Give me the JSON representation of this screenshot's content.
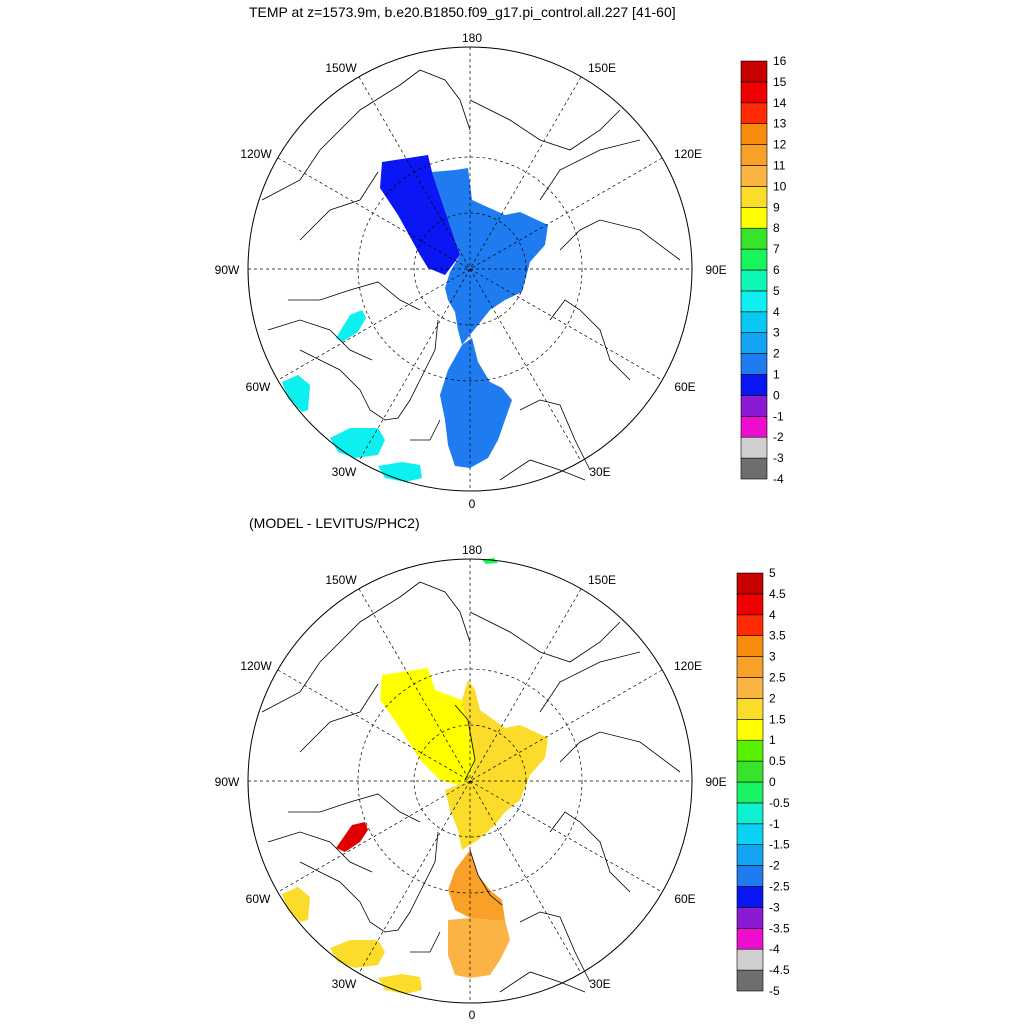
{
  "panel_top": {
    "title": "TEMP at z=1573.9m, b.e20.B1850.f09_g17.pi_control.all.227 [41-60]",
    "longitude_labels": [
      "180",
      "150E",
      "120E",
      "90E",
      "60E",
      "30E",
      "0",
      "30W",
      "60W",
      "90W",
      "120W",
      "150W"
    ],
    "colorbar": {
      "colors": [
        "#6e6e6e",
        "#cfcfcf",
        "#ee0ecf",
        "#8a1bd2",
        "#0a16f4",
        "#1f7bf0",
        "#12a4f2",
        "#0bc8f2",
        "#0ef0f0",
        "#10f6b6",
        "#18f45c",
        "#38e42a",
        "#ffff00",
        "#fcdc2a",
        "#fbb444",
        "#f9a028",
        "#f88c0c",
        "#ff2a06",
        "#f00000",
        "#c80000"
      ],
      "labels": [
        "16",
        "15",
        "14",
        "13",
        "12",
        "11",
        "10",
        "9",
        "8",
        "7",
        "6",
        "5",
        "4",
        "3",
        "2",
        "1",
        "0",
        "-1",
        "-2",
        "-3",
        "-4"
      ]
    }
  },
  "panel_bottom": {
    "title": "(MODEL - LEVITUS/PHC2)",
    "longitude_labels": [
      "180",
      "150E",
      "120E",
      "90E",
      "60E",
      "30E",
      "0",
      "30W",
      "60W",
      "90W",
      "120W",
      "150W"
    ],
    "colorbar": {
      "colors": [
        "#6e6e6e",
        "#cfcfcf",
        "#ee0ecf",
        "#8a1bd2",
        "#0a16f4",
        "#1f7bf0",
        "#12a4f2",
        "#0bd2f2",
        "#0ef0d0",
        "#18f464",
        "#38e42a",
        "#58f000",
        "#ffff00",
        "#fcdc2a",
        "#fbb444",
        "#f9a028",
        "#f88c0c",
        "#ff2a06",
        "#f00000",
        "#c80000"
      ],
      "labels": [
        "5",
        "4.5",
        "4",
        "3.5",
        "3",
        "2.5",
        "2",
        "1.5",
        "1",
        "0.5",
        "0",
        "-0.5",
        "-1",
        "-1.5",
        "-2",
        "-2.5",
        "-3",
        "-3.5",
        "-4",
        "-4.5",
        "-5"
      ]
    }
  }
}
